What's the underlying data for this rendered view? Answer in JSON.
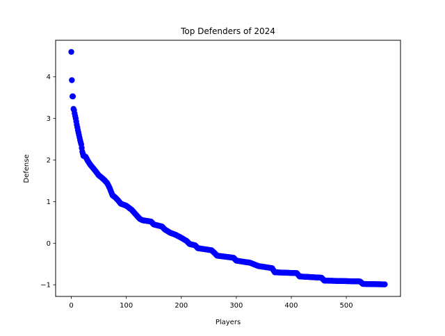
{
  "chart_data": {
    "type": "scatter",
    "title": "Top Defenders of 2024",
    "xlabel": "Players",
    "ylabel": "Defense",
    "xlim": [
      -28.5,
      598.5
    ],
    "ylim": [
      -1.28,
      4.88
    ],
    "xticks": [
      0,
      100,
      200,
      300,
      400,
      500
    ],
    "yticks": [
      -1,
      0,
      1,
      2,
      3,
      4
    ],
    "tick_labels": {
      "x": [
        "0",
        "100",
        "200",
        "300",
        "400",
        "500"
      ],
      "y": [
        "−1",
        "0",
        "1",
        "2",
        "3",
        "4"
      ]
    },
    "grid": false,
    "legend": "none",
    "marker_color": "#0000ff",
    "series": [
      {
        "n_points": 571,
        "knots": [
          [
            0,
            4.6
          ],
          [
            1,
            3.92
          ],
          [
            2,
            3.53
          ],
          [
            3,
            3.53
          ],
          [
            4,
            3.23
          ],
          [
            5,
            3.2
          ],
          [
            6,
            3.12
          ],
          [
            8,
            3.0
          ],
          [
            10,
            2.85
          ],
          [
            12,
            2.72
          ],
          [
            14,
            2.6
          ],
          [
            16,
            2.48
          ],
          [
            18,
            2.38
          ],
          [
            20,
            2.2
          ],
          [
            22,
            2.1
          ],
          [
            26,
            2.08
          ],
          [
            30,
            1.98
          ],
          [
            35,
            1.88
          ],
          [
            40,
            1.8
          ],
          [
            45,
            1.72
          ],
          [
            50,
            1.63
          ],
          [
            55,
            1.58
          ],
          [
            60,
            1.52
          ],
          [
            65,
            1.45
          ],
          [
            70,
            1.32
          ],
          [
            75,
            1.15
          ],
          [
            80,
            1.1
          ],
          [
            85,
            1.03
          ],
          [
            90,
            0.95
          ],
          [
            100,
            0.9
          ],
          [
            110,
            0.8
          ],
          [
            120,
            0.65
          ],
          [
            125,
            0.58
          ],
          [
            130,
            0.55
          ],
          [
            145,
            0.52
          ],
          [
            150,
            0.45
          ],
          [
            165,
            0.4
          ],
          [
            170,
            0.33
          ],
          [
            180,
            0.25
          ],
          [
            190,
            0.2
          ],
          [
            200,
            0.13
          ],
          [
            210,
            0.05
          ],
          [
            215,
            -0.02
          ],
          [
            225,
            -0.05
          ],
          [
            230,
            -0.12
          ],
          [
            255,
            -0.17
          ],
          [
            260,
            -0.23
          ],
          [
            265,
            -0.3
          ],
          [
            295,
            -0.35
          ],
          [
            300,
            -0.42
          ],
          [
            325,
            -0.47
          ],
          [
            340,
            -0.55
          ],
          [
            365,
            -0.6
          ],
          [
            370,
            -0.7
          ],
          [
            410,
            -0.72
          ],
          [
            415,
            -0.8
          ],
          [
            455,
            -0.83
          ],
          [
            460,
            -0.9
          ],
          [
            525,
            -0.92
          ],
          [
            530,
            -0.98
          ],
          [
            570,
            -0.99
          ]
        ]
      }
    ]
  }
}
